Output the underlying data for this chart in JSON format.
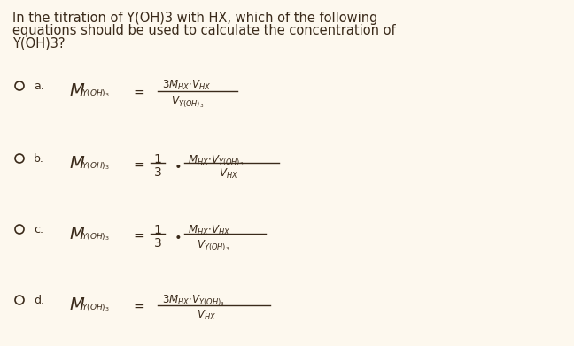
{
  "background_color": "#fdf8ee",
  "text_color": "#3a2a1a",
  "title_lines": [
    "In the titration of Y(OH)3 with HX, which of the following",
    "equations should be used to calculate the concentration of",
    "Y(OH)3?"
  ]
}
